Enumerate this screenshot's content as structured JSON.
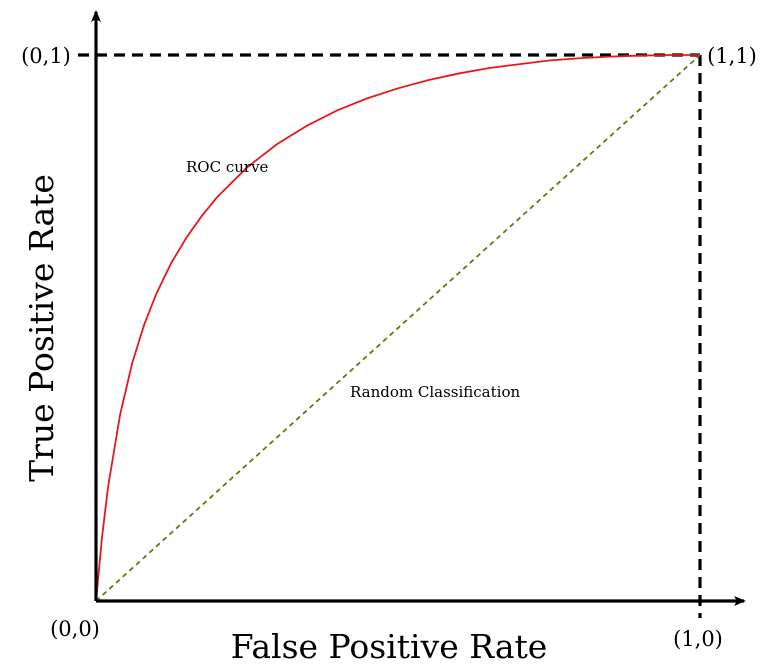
{
  "chart_data": {
    "type": "line",
    "title": "",
    "xlabel": "False Positive Rate",
    "ylabel": "True Positive Rate",
    "xlim": [
      0,
      1
    ],
    "ylim": [
      0,
      1
    ],
    "grid": false,
    "legend": "none",
    "corner_labels": {
      "origin": "(0,0)",
      "x_end": "(1,0)",
      "y_end": "(0,1)",
      "top_right": "(1,1)"
    },
    "annotations": {
      "roc": "ROC curve",
      "random": "Random Classification"
    },
    "series": [
      {
        "style": "solid",
        "color": "#e8171c",
        "x": [
          0,
          0.01,
          0.02,
          0.04,
          0.06,
          0.08,
          0.1,
          0.125,
          0.15,
          0.175,
          0.2,
          0.25,
          0.3,
          0.35,
          0.4,
          0.45,
          0.5,
          0.55,
          0.6,
          0.65,
          0.7,
          0.75,
          0.8,
          0.85,
          0.9,
          0.95,
          1.0
        ],
        "y": [
          0,
          0.117,
          0.209,
          0.342,
          0.436,
          0.507,
          0.563,
          0.62,
          0.666,
          0.705,
          0.739,
          0.794,
          0.837,
          0.871,
          0.899,
          0.921,
          0.939,
          0.954,
          0.966,
          0.976,
          0.983,
          0.99,
          0.994,
          0.997,
          0.999,
          1.0,
          1.0
        ]
      },
      {
        "style": "dashed",
        "color": "#5e7c0c",
        "x": [
          0,
          1
        ],
        "y": [
          0,
          1
        ]
      }
    ]
  }
}
